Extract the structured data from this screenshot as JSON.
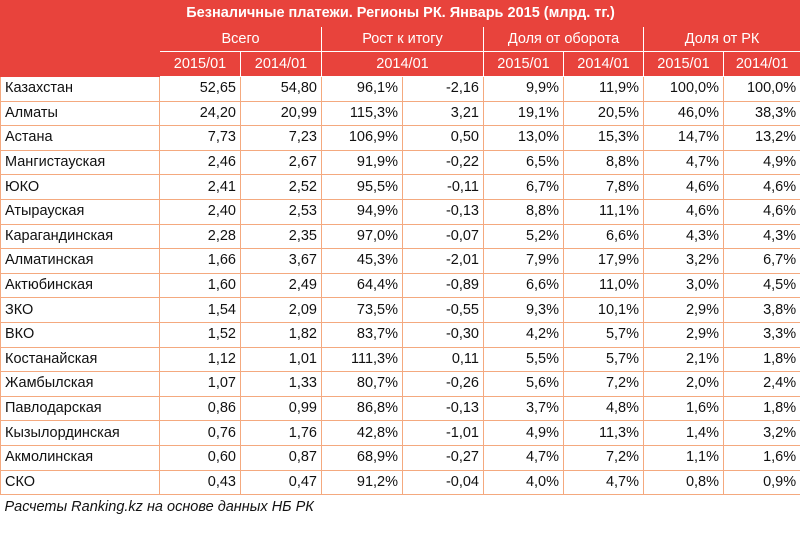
{
  "title": "Безналичные платежи. Регионы РК. Январь 2015 (млрд. тг.)",
  "groups": [
    "Всего",
    "Рост к итогу",
    "Доля от оборота",
    "Доля от РК"
  ],
  "subheaders": [
    "2015/01",
    "2014/01",
    "2014/01",
    "2015/01",
    "2014/01",
    "2015/01",
    "2014/01"
  ],
  "rows": [
    [
      "Казахстан",
      "52,65",
      "54,80",
      "96,1%",
      "-2,16",
      "9,9%",
      "11,9%",
      "100,0%",
      "100,0%"
    ],
    [
      "Алматы",
      "24,20",
      "20,99",
      "115,3%",
      "3,21",
      "19,1%",
      "20,5%",
      "46,0%",
      "38,3%"
    ],
    [
      "Астана",
      "7,73",
      "7,23",
      "106,9%",
      "0,50",
      "13,0%",
      "15,3%",
      "14,7%",
      "13,2%"
    ],
    [
      "Мангистауская",
      "2,46",
      "2,67",
      "91,9%",
      "-0,22",
      "6,5%",
      "8,8%",
      "4,7%",
      "4,9%"
    ],
    [
      "ЮКО",
      "2,41",
      "2,52",
      "95,5%",
      "-0,11",
      "6,7%",
      "7,8%",
      "4,6%",
      "4,6%"
    ],
    [
      "Атырауская",
      "2,40",
      "2,53",
      "94,9%",
      "-0,13",
      "8,8%",
      "11,1%",
      "4,6%",
      "4,6%"
    ],
    [
      "Карагандинская",
      "2,28",
      "2,35",
      "97,0%",
      "-0,07",
      "5,2%",
      "6,6%",
      "4,3%",
      "4,3%"
    ],
    [
      "Алматинская",
      "1,66",
      "3,67",
      "45,3%",
      "-2,01",
      "7,9%",
      "17,9%",
      "3,2%",
      "6,7%"
    ],
    [
      "Актюбинская",
      "1,60",
      "2,49",
      "64,4%",
      "-0,89",
      "6,6%",
      "11,0%",
      "3,0%",
      "4,5%"
    ],
    [
      "ЗКО",
      "1,54",
      "2,09",
      "73,5%",
      "-0,55",
      "9,3%",
      "10,1%",
      "2,9%",
      "3,8%"
    ],
    [
      "ВКО",
      "1,52",
      "1,82",
      "83,7%",
      "-0,30",
      "4,2%",
      "5,7%",
      "2,9%",
      "3,3%"
    ],
    [
      "Костанайская",
      "1,12",
      "1,01",
      "111,3%",
      "0,11",
      "5,5%",
      "5,7%",
      "2,1%",
      "1,8%"
    ],
    [
      "Жамбылская",
      "1,07",
      "1,33",
      "80,7%",
      "-0,26",
      "5,6%",
      "7,2%",
      "2,0%",
      "2,4%"
    ],
    [
      "Павлодарская",
      "0,86",
      "0,99",
      "86,8%",
      "-0,13",
      "3,7%",
      "4,8%",
      "1,6%",
      "1,8%"
    ],
    [
      "Кызылординская",
      "0,76",
      "1,76",
      "42,8%",
      "-1,01",
      "4,9%",
      "11,3%",
      "1,4%",
      "3,2%"
    ],
    [
      "Акмолинская",
      "0,60",
      "0,87",
      "68,9%",
      "-0,27",
      "4,7%",
      "7,2%",
      "1,1%",
      "1,6%"
    ],
    [
      "СКО",
      "0,43",
      "0,47",
      "91,2%",
      "-0,04",
      "4,0%",
      "4,7%",
      "0,8%",
      "0,9%"
    ]
  ],
  "footer": "Расчеты Ranking.kz на основе данных НБ РК"
}
